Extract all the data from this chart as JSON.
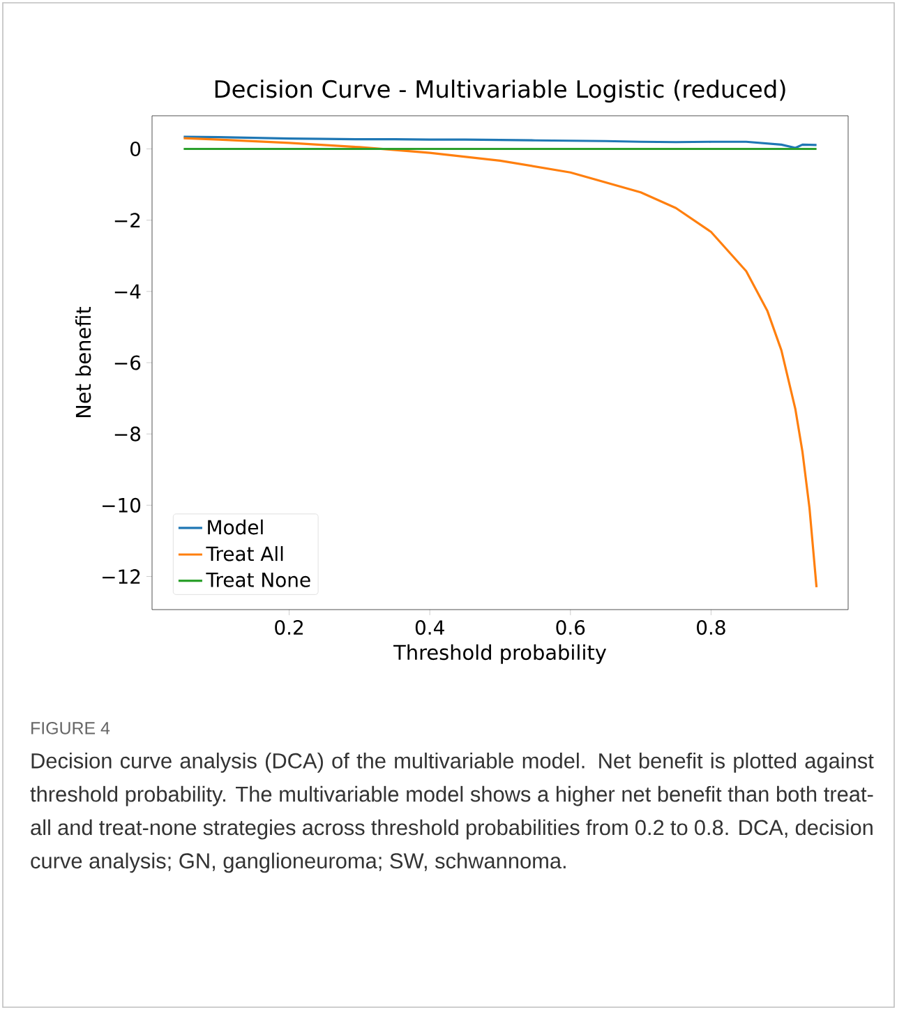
{
  "chart_data": {
    "type": "line",
    "title": "Decision Curve - Multivariable Logistic (reduced)",
    "xlabel": "Threshold probability",
    "ylabel": "Net benefit",
    "xlim": [
      0.005,
      0.995
    ],
    "ylim": [
      -12.93,
      0.93
    ],
    "xticks": [
      0.2,
      0.4,
      0.6,
      0.8
    ],
    "yticks": [
      {
        "value": -12,
        "label": "−12"
      },
      {
        "value": -10,
        "label": "−10"
      },
      {
        "value": -8,
        "label": "−8"
      },
      {
        "value": -6,
        "label": "−6"
      },
      {
        "value": -4,
        "label": "−4"
      },
      {
        "value": -2,
        "label": "−2"
      },
      0
    ],
    "legend": "bottom left",
    "grid": false,
    "series": [
      {
        "name": "Model",
        "color": "#1f77b4",
        "x": [
          0.05,
          0.1,
          0.15,
          0.2,
          0.25,
          0.3,
          0.35,
          0.4,
          0.45,
          0.5,
          0.55,
          0.6,
          0.65,
          0.7,
          0.75,
          0.8,
          0.85,
          0.9,
          0.92,
          0.93,
          0.95
        ],
        "values": [
          0.34,
          0.33,
          0.31,
          0.29,
          0.28,
          0.27,
          0.27,
          0.26,
          0.26,
          0.25,
          0.24,
          0.23,
          0.22,
          0.2,
          0.19,
          0.2,
          0.2,
          0.12,
          0.03,
          0.12,
          0.11
        ]
      },
      {
        "name": "Treat All",
        "color": "#ff7f0e",
        "x": [
          0.05,
          0.1,
          0.2,
          0.3,
          0.4,
          0.5,
          0.6,
          0.7,
          0.75,
          0.8,
          0.85,
          0.88,
          0.9,
          0.92,
          0.93,
          0.94,
          0.95
        ],
        "values": [
          0.3,
          0.26,
          0.17,
          0.05,
          -0.11,
          -0.33,
          -0.66,
          -1.22,
          -1.66,
          -2.33,
          -3.43,
          -4.54,
          -5.65,
          -7.31,
          -8.5,
          -10.08,
          -12.3
        ]
      },
      {
        "name": "Treat None",
        "color": "#2ca02c",
        "x": [
          0.05,
          0.95
        ],
        "values": [
          0,
          0
        ]
      }
    ],
    "annotations": [
      "FIGURE 4",
      "Decision curve analysis (DCA) of the multivariable model. Net benefit is plotted against threshold probability. The multivariable model shows a higher net benefit than both treat-all and treat-none strategies across threshold probabilities from 0.2 to 0.8. DCA, decision curve analysis; GN, ganglioneuroma; SW, schwannoma."
    ]
  }
}
